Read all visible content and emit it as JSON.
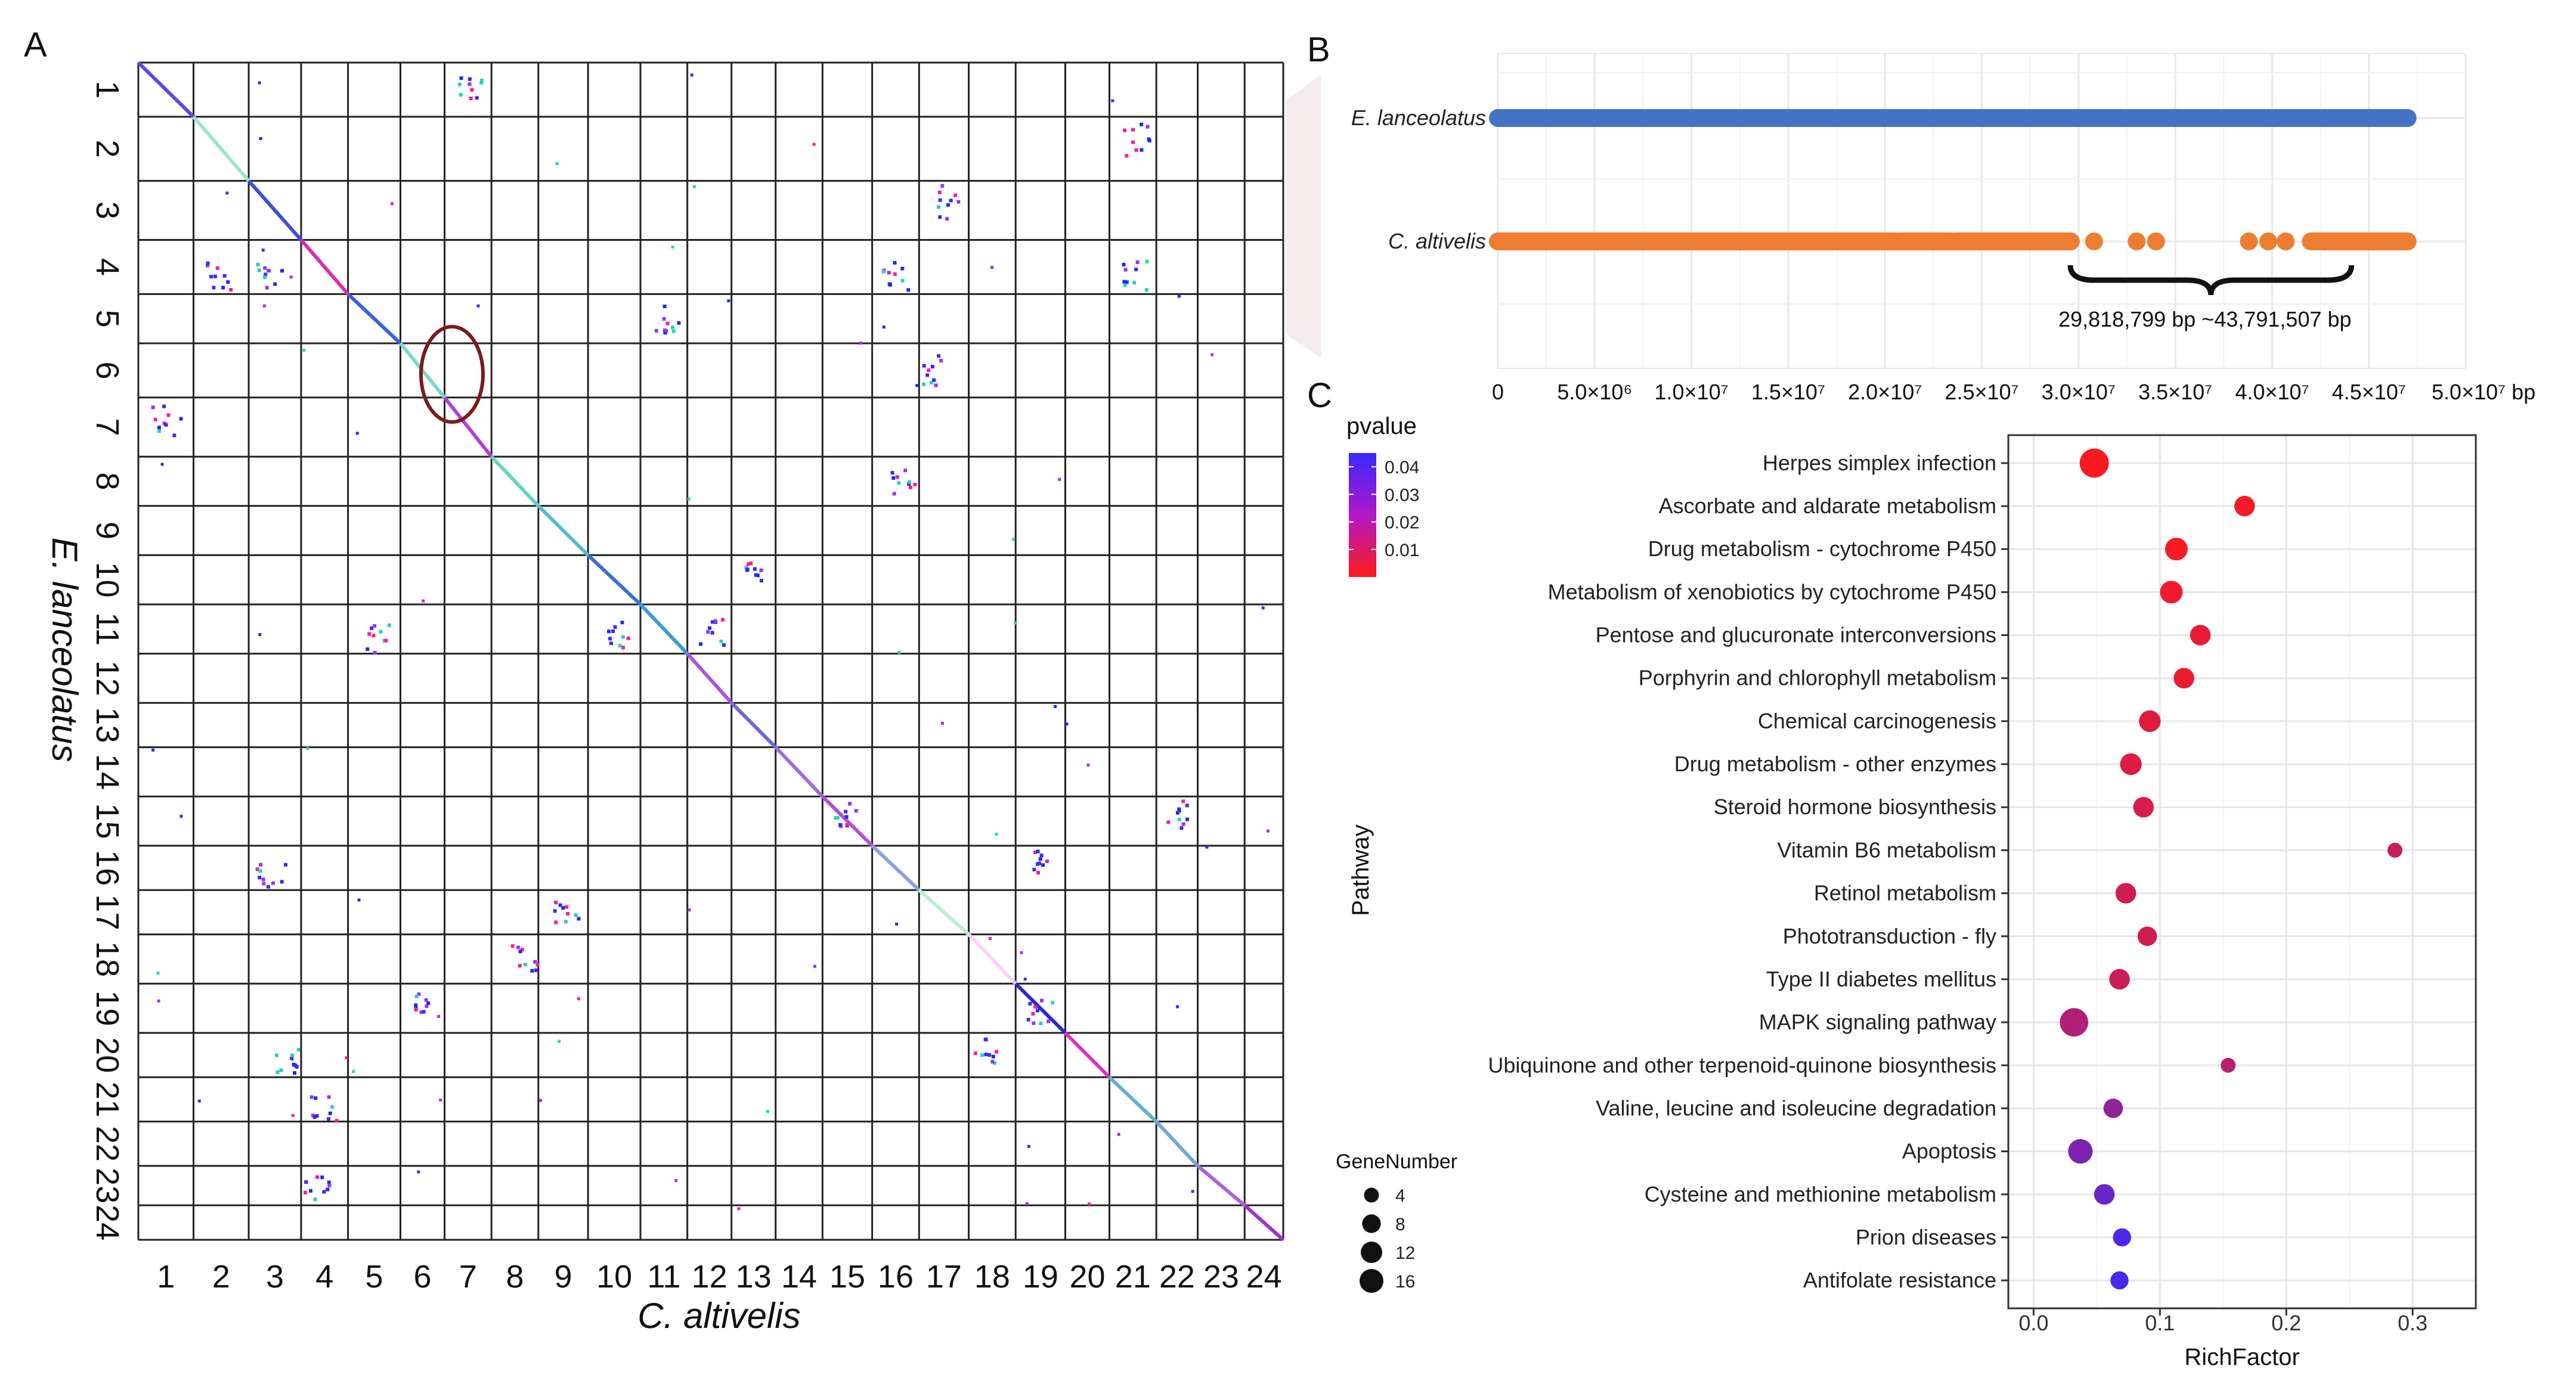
{
  "panels": {
    "a": "A",
    "b": "B",
    "c": "C"
  },
  "chart_data": [
    {
      "type": "scatter",
      "panel": "A",
      "subtype": "dot-plot",
      "xlabel": "C. altivelis",
      "ylabel": "E. lanceolatus",
      "x_categories": [
        "1",
        "2",
        "3",
        "4",
        "5",
        "6",
        "7",
        "8",
        "9",
        "10",
        "11",
        "12",
        "13",
        "14",
        "15",
        "16",
        "17",
        "18",
        "19",
        "20",
        "21",
        "22",
        "23",
        "24"
      ],
      "y_categories": [
        "1",
        "2",
        "3",
        "4",
        "5",
        "6",
        "7",
        "8",
        "9",
        "10",
        "11",
        "12",
        "13",
        "14",
        "15",
        "16",
        "17",
        "18",
        "19",
        "20",
        "21",
        "22",
        "23",
        "24"
      ],
      "x_chrom_sizes": [
        1.0,
        1.0,
        0.95,
        0.85,
        0.95,
        0.8,
        0.85,
        0.85,
        0.9,
        0.95,
        0.85,
        0.8,
        0.8,
        0.85,
        0.9,
        0.85,
        0.9,
        0.85,
        0.9,
        0.8,
        0.85,
        0.75,
        0.85,
        0.7
      ],
      "y_chrom_sizes": [
        1.1,
        1.3,
        1.2,
        1.1,
        1.0,
        1.1,
        1.2,
        1.0,
        1.0,
        1.0,
        1.0,
        1.0,
        0.9,
        1.0,
        1.0,
        0.9,
        0.9,
        1.0,
        1.0,
        0.9,
        0.9,
        0.9,
        0.8,
        0.7
      ],
      "diagonal_colors": [
        "#5b4ae6",
        "#9ae6c8",
        "#3c4fd6",
        "#d92eb0",
        "#3a5fe0",
        "#7dd8c8",
        "#b040d8",
        "#66d4c4",
        "#5ab8d8",
        "#3d6fd0",
        "#3b9bd8",
        "#b050e0",
        "#6a6ad8",
        "#9a70d8",
        "#b050d8",
        "#8aa0e0",
        "#b8f0d0",
        "#ffd0ff",
        "#2a2ad0",
        "#e030c0",
        "#60b0d8",
        "#70a8d8",
        "#b060e0",
        "#a030d0"
      ],
      "synteny_clusters": [
        [
          7,
          1
        ],
        [
          3,
          4
        ],
        [
          16,
          4
        ],
        [
          2,
          4
        ],
        [
          17,
          3
        ],
        [
          11,
          5
        ],
        [
          17,
          6
        ],
        [
          1,
          7
        ],
        [
          16,
          8
        ],
        [
          9,
          17
        ],
        [
          12,
          11
        ],
        [
          13,
          10
        ],
        [
          15,
          15
        ],
        [
          10,
          11
        ],
        [
          3,
          16
        ],
        [
          8,
          18
        ],
        [
          19,
          19
        ],
        [
          18,
          20
        ],
        [
          4,
          21
        ],
        [
          19,
          16
        ],
        [
          22,
          15
        ],
        [
          6,
          19
        ],
        [
          5,
          11
        ],
        [
          21,
          2
        ],
        [
          21,
          4
        ],
        [
          3,
          20
        ],
        [
          4,
          23
        ]
      ],
      "annotation": "circle at chr6 region"
    },
    {
      "type": "scatter",
      "panel": "B",
      "subtype": "genomic-coverage",
      "categories": [
        "E. lanceolatus",
        "C. altivelis"
      ],
      "x_ticks": [
        "0",
        "5.0×10⁶",
        "1.0×10⁷",
        "1.5×10⁷",
        "2.0×10⁷",
        "2.5×10⁷",
        "3.0×10⁷",
        "3.5×10⁷",
        "4.0×10⁷",
        "4.5×10⁷",
        "5.0×10⁷ bp"
      ],
      "x_tick_values": [
        0,
        5000000,
        10000000,
        15000000,
        20000000,
        25000000,
        30000000,
        35000000,
        40000000,
        45000000,
        50000000
      ],
      "xlim": [
        0,
        50000000
      ],
      "series": [
        {
          "name": "E. lanceolatus",
          "color": "#4472c4",
          "segments": [
            [
              0,
              47000000
            ]
          ]
        },
        {
          "name": "C. altivelis",
          "color": "#ed7d31",
          "segments": [
            [
              0,
              20500000
            ],
            [
              20700000,
              23400000
            ],
            [
              23600000,
              29600000
            ]
          ],
          "isolated_points": [
            30800000,
            33000000,
            34000000,
            38800000,
            39800000,
            40700000
          ],
          "tail_segment": [
            42000000,
            47000000
          ]
        }
      ],
      "bracket_label": "29,818,799 bp ~43,791,507 bp",
      "bracket_range": [
        29818799,
        43791507
      ]
    },
    {
      "type": "scatter",
      "panel": "C",
      "subtype": "bubble",
      "title": "",
      "xlabel": "RichFactor",
      "ylabel": "Pathway",
      "xlim": [
        -0.02,
        0.35
      ],
      "x_ticks": [
        "0.0",
        "0.1",
        "0.2",
        "0.3"
      ],
      "x_tick_values": [
        0.0,
        0.1,
        0.2,
        0.3
      ],
      "categories": [
        "Herpes simplex infection",
        "Ascorbate and aldarate metabolism",
        "Drug metabolism - cytochrome P450",
        "Metabolism of xenobiotics by cytochrome P450",
        "Pentose and glucuronate interconversions",
        "Porphyrin and chlorophyll metabolism",
        "Chemical carcinogenesis",
        "Drug metabolism - other enzymes",
        "Steroid hormone biosynthesis",
        "Vitamin B6 metabolism",
        "Retinol metabolism",
        "Phototransduction - fly",
        "Type II diabetes mellitus",
        "MAPK signaling pathway",
        "Ubiquinone and other terpenoid-quinone biosynthesis",
        "Valine, leucine and isoleucine degradation",
        "Apoptosis",
        "Cysteine and methionine metabolism",
        "Prion diseases",
        "Antifolate resistance"
      ],
      "richfactor": [
        0.048,
        0.167,
        0.113,
        0.109,
        0.132,
        0.119,
        0.092,
        0.077,
        0.087,
        0.286,
        0.073,
        0.09,
        0.068,
        0.032,
        0.154,
        0.063,
        0.037,
        0.056,
        0.07,
        0.068
      ],
      "pvalue": [
        0.001,
        0.003,
        0.002,
        0.004,
        0.006,
        0.005,
        0.008,
        0.009,
        0.01,
        0.015,
        0.012,
        0.012,
        0.013,
        0.02,
        0.018,
        0.028,
        0.033,
        0.038,
        0.045,
        0.046
      ],
      "genenumber": [
        16,
        6,
        8,
        8,
        6,
        6,
        7,
        7,
        6,
        2,
        6,
        5,
        6,
        15,
        2,
        5,
        10,
        6,
        4,
        4
      ],
      "color_legend": {
        "title": "pvalue",
        "ticks": [
          "0.04",
          "0.03",
          "0.02",
          "0.01"
        ],
        "tick_values": [
          0.04,
          0.03,
          0.02,
          0.01
        ],
        "low_color": "#ff1a1a",
        "high_color": "#3a28ff"
      },
      "size_legend": {
        "title": "GeneNumber",
        "labels": [
          "4",
          "8",
          "12",
          "16"
        ],
        "values": [
          4,
          8,
          12,
          16
        ]
      }
    }
  ]
}
